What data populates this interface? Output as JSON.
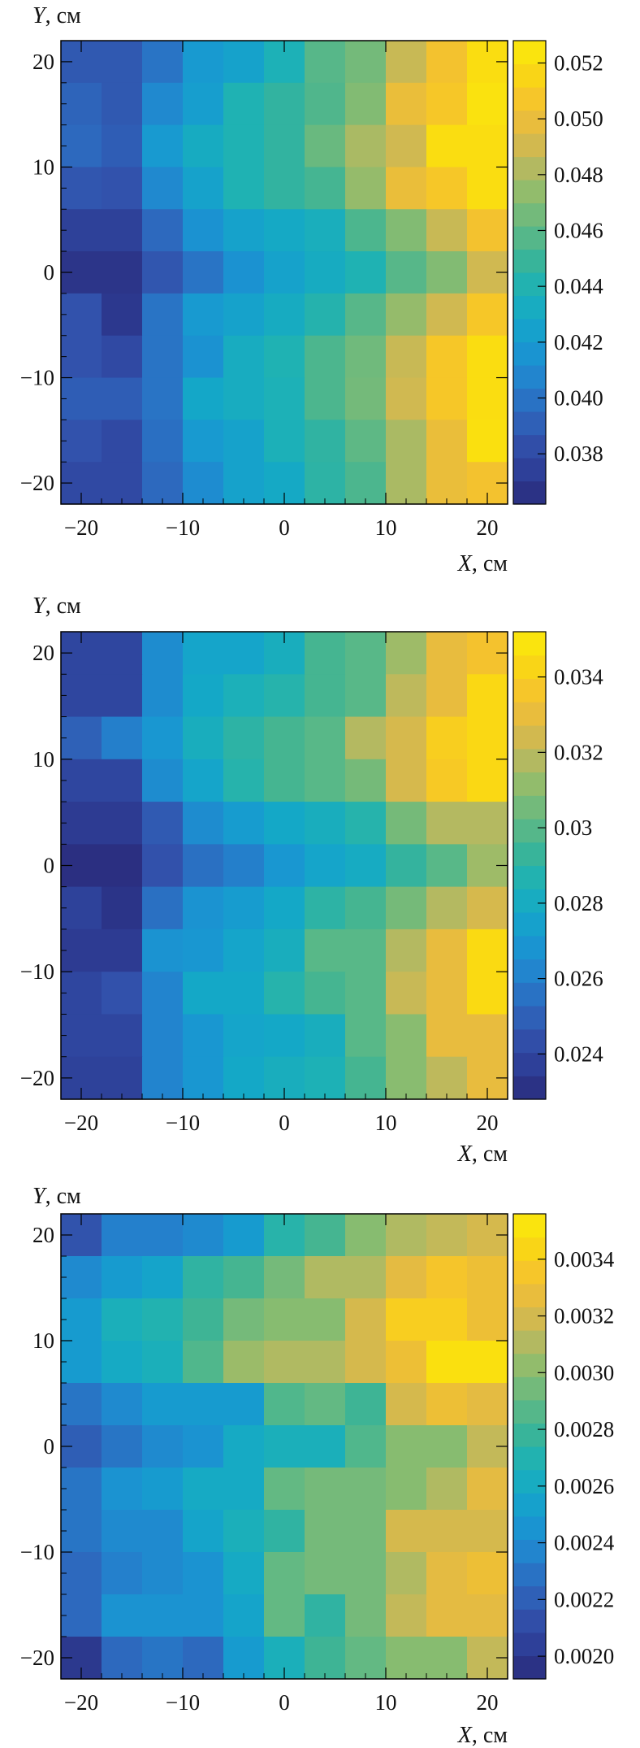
{
  "chart_data": [
    {
      "type": "heatmap",
      "xlabel_var": "X",
      "xlabel_unit": ", см",
      "ylabel_var": "Y",
      "ylabel_unit": ", см",
      "xlim": [
        -22,
        22
      ],
      "ylim": [
        -22,
        22
      ],
      "x_ticks": [
        -20,
        -10,
        0,
        10,
        20
      ],
      "x_tick_labels": [
        "−20",
        "−10",
        "0",
        "10",
        "20"
      ],
      "y_ticks": [
        20,
        10,
        0,
        -10,
        -20
      ],
      "y_tick_labels": [
        "20",
        "10",
        "0",
        "−10",
        "−20"
      ],
      "colorbar_range": [
        0.0362,
        0.0528
      ],
      "colorbar_ticks": [
        0.052,
        0.05,
        0.048,
        0.046,
        0.044,
        0.042,
        0.04,
        0.038
      ],
      "colorbar_tick_labels": [
        "0.052",
        "0.050",
        "0.048",
        "0.046",
        "0.044",
        "0.042",
        "0.040",
        "0.038"
      ],
      "values": [
        [
          0.0388,
          0.0388,
          0.04,
          0.042,
          0.0425,
          0.0438,
          0.0458,
          0.0466,
          0.0488,
          0.0505,
          0.052
        ],
        [
          0.0393,
          0.0388,
          0.041,
          0.0422,
          0.044,
          0.0447,
          0.0456,
          0.047,
          0.05,
          0.0508,
          0.0523
        ],
        [
          0.0395,
          0.039,
          0.042,
          0.0432,
          0.044,
          0.0447,
          0.0463,
          0.048,
          0.049,
          0.052,
          0.052
        ],
        [
          0.0387,
          0.0385,
          0.041,
          0.0425,
          0.044,
          0.0447,
          0.0453,
          0.0475,
          0.05,
          0.0508,
          0.052
        ],
        [
          0.0375,
          0.0375,
          0.0395,
          0.0415,
          0.0425,
          0.043,
          0.0435,
          0.0455,
          0.047,
          0.0488,
          0.0505
        ],
        [
          0.0368,
          0.0368,
          0.0387,
          0.04,
          0.0415,
          0.0425,
          0.0432,
          0.044,
          0.0458,
          0.047,
          0.049
        ],
        [
          0.0385,
          0.037,
          0.04,
          0.042,
          0.0425,
          0.0432,
          0.0442,
          0.0458,
          0.0475,
          0.049,
          0.0508
        ],
        [
          0.0385,
          0.038,
          0.04,
          0.0415,
          0.0433,
          0.044,
          0.0455,
          0.0465,
          0.0488,
          0.0508,
          0.052
        ],
        [
          0.039,
          0.039,
          0.04,
          0.0428,
          0.0433,
          0.0438,
          0.0455,
          0.0466,
          0.049,
          0.0508,
          0.052
        ],
        [
          0.0385,
          0.038,
          0.0398,
          0.042,
          0.0425,
          0.0437,
          0.0446,
          0.046,
          0.048,
          0.05,
          0.0522
        ],
        [
          0.038,
          0.038,
          0.0395,
          0.0412,
          0.0425,
          0.043,
          0.0445,
          0.0455,
          0.048,
          0.05,
          0.0505
        ]
      ]
    },
    {
      "type": "heatmap",
      "xlabel_var": "X",
      "xlabel_unit": ", см",
      "ylabel_var": "Y",
      "ylabel_unit": ", см",
      "xlim": [
        -22,
        22
      ],
      "ylim": [
        -22,
        22
      ],
      "x_ticks": [
        -20,
        -10,
        0,
        10,
        20
      ],
      "x_tick_labels": [
        "−20",
        "−10",
        "0",
        "10",
        "20"
      ],
      "y_ticks": [
        20,
        10,
        0,
        -10,
        -20
      ],
      "y_tick_labels": [
        "20",
        "10",
        "0",
        "−10",
        "−20"
      ],
      "colorbar_range": [
        0.0228,
        0.0352
      ],
      "colorbar_ticks": [
        0.034,
        0.032,
        0.03,
        0.028,
        0.026,
        0.024
      ],
      "colorbar_tick_labels": [
        "0.034",
        "0.032",
        "0.03",
        "0.028",
        "0.026",
        "0.024"
      ],
      "values": [
        [
          0.024,
          0.024,
          0.0265,
          0.0276,
          0.0276,
          0.0282,
          0.0296,
          0.03,
          0.0314,
          0.033,
          0.0335
        ],
        [
          0.024,
          0.024,
          0.0265,
          0.0278,
          0.0284,
          0.0288,
          0.0296,
          0.03,
          0.032,
          0.033,
          0.0344
        ],
        [
          0.025,
          0.026,
          0.027,
          0.0282,
          0.029,
          0.0296,
          0.03,
          0.0318,
          0.0325,
          0.034,
          0.0344
        ],
        [
          0.024,
          0.024,
          0.0265,
          0.0276,
          0.0288,
          0.0296,
          0.03,
          0.0306,
          0.0325,
          0.0338,
          0.0344
        ],
        [
          0.0235,
          0.0235,
          0.0248,
          0.0265,
          0.0272,
          0.0278,
          0.0282,
          0.0288,
          0.0306,
          0.0318,
          0.0318
        ],
        [
          0.023,
          0.023,
          0.0245,
          0.0255,
          0.026,
          0.027,
          0.0276,
          0.028,
          0.0292,
          0.03,
          0.0314
        ],
        [
          0.0238,
          0.0232,
          0.0255,
          0.0268,
          0.0272,
          0.0278,
          0.029,
          0.0296,
          0.0306,
          0.0318,
          0.0325
        ],
        [
          0.0235,
          0.0235,
          0.0268,
          0.027,
          0.0276,
          0.0282,
          0.03,
          0.03,
          0.0318,
          0.033,
          0.0345
        ],
        [
          0.024,
          0.0245,
          0.0262,
          0.0278,
          0.0278,
          0.0288,
          0.0296,
          0.03,
          0.0322,
          0.033,
          0.0345
        ],
        [
          0.024,
          0.024,
          0.0262,
          0.027,
          0.0276,
          0.0278,
          0.0282,
          0.03,
          0.031,
          0.033,
          0.033
        ],
        [
          0.0238,
          0.0238,
          0.0262,
          0.027,
          0.0278,
          0.0282,
          0.0285,
          0.0296,
          0.031,
          0.032,
          0.033
        ]
      ]
    },
    {
      "type": "heatmap",
      "xlabel_var": "X",
      "xlabel_unit": ", см",
      "ylabel_var": "Y",
      "ylabel_unit": ", см",
      "xlim": [
        -22,
        22
      ],
      "ylim": [
        -22,
        22
      ],
      "x_ticks": [
        -20,
        -10,
        0,
        10,
        20
      ],
      "x_tick_labels": [
        "−20",
        "−10",
        "0",
        "10",
        "20"
      ],
      "y_ticks": [
        20,
        10,
        0,
        -10,
        -20
      ],
      "y_tick_labels": [
        "20",
        "10",
        "0",
        "−10",
        "−20"
      ],
      "colorbar_range": [
        0.00192,
        0.00356
      ],
      "colorbar_ticks": [
        0.0034,
        0.0032,
        0.003,
        0.0028,
        0.0026,
        0.0024,
        0.0022,
        0.002
      ],
      "colorbar_tick_labels": [
        "0.0034",
        "0.0032",
        "0.0030",
        "0.0028",
        "0.0026",
        "0.0024",
        "0.0022",
        "0.0020"
      ],
      "values": [
        [
          0.00215,
          0.00235,
          0.00235,
          0.0024,
          0.0025,
          0.00272,
          0.00282,
          0.003,
          0.0031,
          0.00315,
          0.0032
        ],
        [
          0.0024,
          0.0025,
          0.00255,
          0.00275,
          0.00282,
          0.00295,
          0.0031,
          0.0031,
          0.00325,
          0.00335,
          0.0033
        ],
        [
          0.0025,
          0.00265,
          0.0027,
          0.0028,
          0.00295,
          0.003,
          0.003,
          0.0032,
          0.0034,
          0.0034,
          0.0033
        ],
        [
          0.0025,
          0.0026,
          0.00265,
          0.00285,
          0.00305,
          0.0031,
          0.0031,
          0.0032,
          0.0033,
          0.0035,
          0.0035
        ],
        [
          0.0023,
          0.0024,
          0.0025,
          0.0025,
          0.0025,
          0.00285,
          0.0029,
          0.0028,
          0.0032,
          0.0033,
          0.00325
        ],
        [
          0.0022,
          0.0023,
          0.0024,
          0.00245,
          0.0026,
          0.00265,
          0.00265,
          0.00285,
          0.003,
          0.003,
          0.00315
        ],
        [
          0.0023,
          0.00245,
          0.0025,
          0.0026,
          0.0026,
          0.0029,
          0.00295,
          0.00295,
          0.003,
          0.0031,
          0.00325
        ],
        [
          0.0023,
          0.0024,
          0.0024,
          0.00255,
          0.00265,
          0.00275,
          0.00295,
          0.00295,
          0.0032,
          0.0032,
          0.0032
        ],
        [
          0.00225,
          0.00235,
          0.0024,
          0.00245,
          0.0026,
          0.0029,
          0.00295,
          0.00295,
          0.0031,
          0.00325,
          0.0033
        ],
        [
          0.00225,
          0.00245,
          0.00245,
          0.00245,
          0.00255,
          0.0029,
          0.00275,
          0.00295,
          0.00315,
          0.00325,
          0.00325
        ],
        [
          0.002,
          0.00225,
          0.0023,
          0.00225,
          0.0025,
          0.00265,
          0.0028,
          0.0029,
          0.003,
          0.003,
          0.00315
        ]
      ]
    }
  ]
}
